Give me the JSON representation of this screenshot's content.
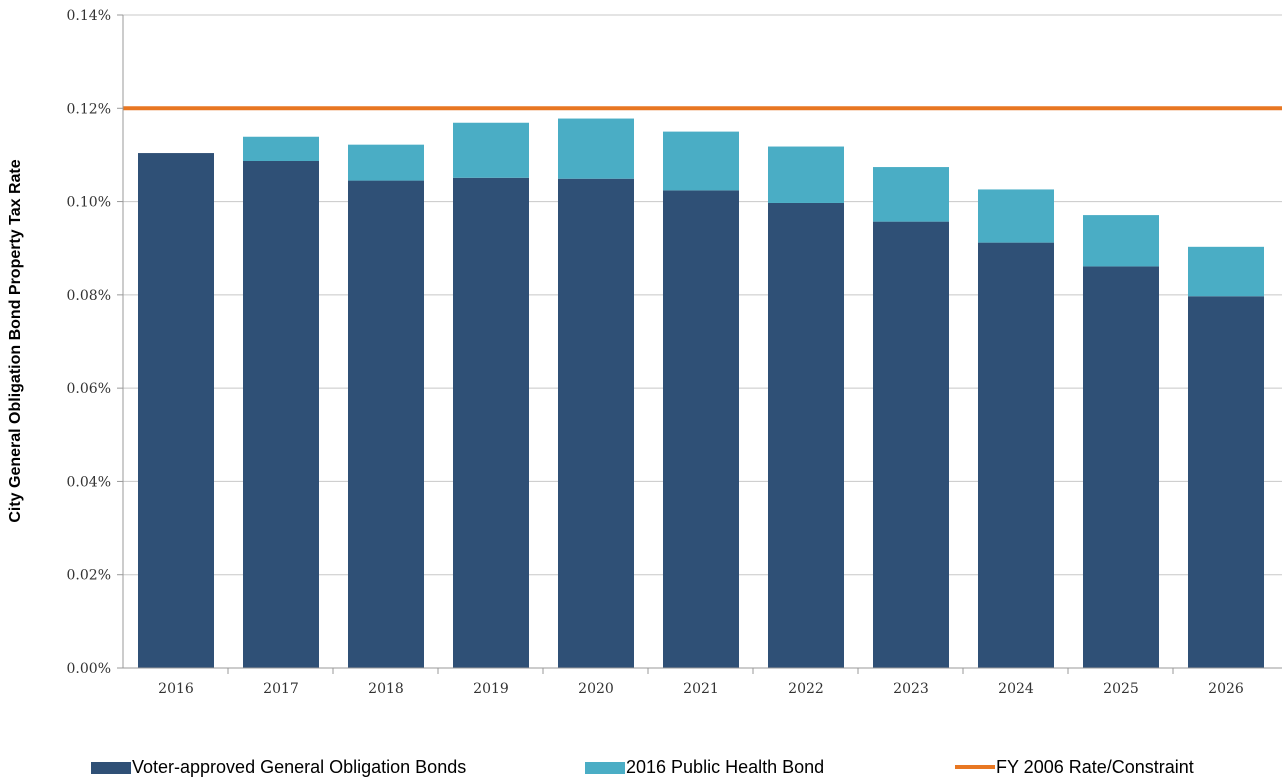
{
  "chart_data": {
    "type": "bar",
    "stacked": true,
    "categories": [
      "2016",
      "2017",
      "2018",
      "2019",
      "2020",
      "2021",
      "2022",
      "2023",
      "2024",
      "2025",
      "2026"
    ],
    "series": [
      {
        "name": "Voter-approved General Obligation Bonds",
        "color": "#2f5076",
        "values": [
          0.1104,
          0.1087,
          0.1045,
          0.1051,
          0.1049,
          0.1024,
          0.0997,
          0.0957,
          0.0912,
          0.0861,
          0.0797
        ]
      },
      {
        "name": "2016 Public Health Bond",
        "color": "#4aadc5",
        "values": [
          0.0,
          0.0052,
          0.0077,
          0.0118,
          0.0129,
          0.0126,
          0.0121,
          0.0117,
          0.0114,
          0.011,
          0.0106
        ]
      }
    ],
    "lines": [
      {
        "name": "FY 2006 Rate/Constraint",
        "color": "#e87722",
        "value": 0.12
      }
    ],
    "ylabel": "City General Obligation Bond Property Tax Rate",
    "xlabel": "",
    "title": "",
    "ylim": [
      0,
      0.14
    ],
    "yticks": [
      "0.00%",
      "0.02%",
      "0.04%",
      "0.06%",
      "0.08%",
      "0.10%",
      "0.12%",
      "0.14%"
    ],
    "ytick_values": [
      0,
      0.02,
      0.04,
      0.06,
      0.08,
      0.1,
      0.12,
      0.14
    ],
    "grid": true,
    "legend_position": "bottom"
  }
}
